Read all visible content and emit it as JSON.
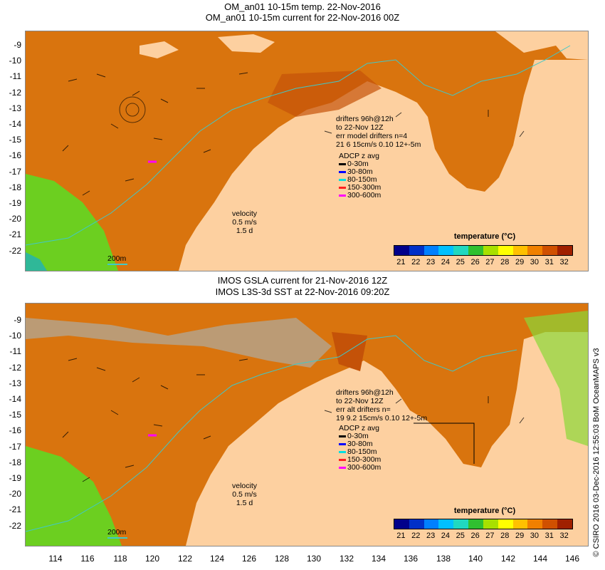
{
  "panels": [
    {
      "title_line1": "OM_an01 10-15m temp. 22-Nov-2016",
      "title_line2": "OM_an01 10-15m current for 22-Nov-2016 00Z",
      "drifters": [
        "drifters 96h@12h",
        "to 22-Nov 12Z",
        "err model drifters n=4",
        "21 6 15cm/s 0.10 12+-5m"
      ],
      "adcp_title": "ADCP z avg",
      "adcp": [
        {
          "label": "0-30m",
          "color": "#000000"
        },
        {
          "label": "30-80m",
          "color": "#0000ff"
        },
        {
          "label": "80-150m",
          "color": "#00e0e0"
        },
        {
          "label": "150-300m",
          "color": "#ff2020"
        },
        {
          "label": "300-600m",
          "color": "#ff00ff"
        }
      ],
      "velocity": [
        "velocity",
        "0.5 m/s",
        "1.5 d"
      ],
      "isobath_label": "200m",
      "colorbar_title": "temperature (°C)"
    },
    {
      "title_line1": "IMOS GSLA current for 21-Nov-2016 12Z",
      "title_line2": "IMOS L3S-3d SST at 22-Nov-2016 09:20Z",
      "drifters": [
        "drifters 96h@12h",
        "to 22-Nov 12Z",
        "err alt drifters n=",
        "19 9.2 15cm/s 0.10 12+-5m"
      ],
      "adcp_title": "ADCP z avg",
      "adcp": [
        {
          "label": "0-30m",
          "color": "#000000"
        },
        {
          "label": "30-80m",
          "color": "#0000ff"
        },
        {
          "label": "80-150m",
          "color": "#00e0e0"
        },
        {
          "label": "150-300m",
          "color": "#ff2020"
        },
        {
          "label": "300-600m",
          "color": "#ff00ff"
        }
      ],
      "velocity": [
        "velocity",
        "0.5 m/s",
        "1.5 d"
      ],
      "isobath_label": "200m",
      "colorbar_title": "temperature (°C)"
    }
  ],
  "colorbar_ticks": [
    "21",
    "22",
    "23",
    "24",
    "25",
    "26",
    "27",
    "28",
    "29",
    "30",
    "31",
    "32"
  ],
  "colorbar_colors": [
    "#00008b",
    "#0030c8",
    "#0080ff",
    "#00c0ff",
    "#20d8c0",
    "#30c030",
    "#a8e000",
    "#ffff00",
    "#ffc000",
    "#f08000",
    "#d05000",
    "#a02000"
  ],
  "y_ticks": [
    "-9",
    "-10",
    "-11",
    "-12",
    "-13",
    "-14",
    "-15",
    "-16",
    "-17",
    "-18",
    "-19",
    "-20",
    "-21",
    "-22"
  ],
  "x_ticks": [
    "114",
    "116",
    "118",
    "120",
    "122",
    "124",
    "126",
    "128",
    "130",
    "132",
    "134",
    "136",
    "138",
    "140",
    "142",
    "144",
    "146"
  ],
  "credit": "© CSIRO 2016   03-Dec-2016 12:55:03 BoM OceanMAPS v3",
  "colors": {
    "land": "#fdd0a0",
    "ocean": "#d9740e",
    "warm_patch": "#c45208",
    "cool_patch": "#6ccf20",
    "coast_line": "#40c8c8"
  }
}
